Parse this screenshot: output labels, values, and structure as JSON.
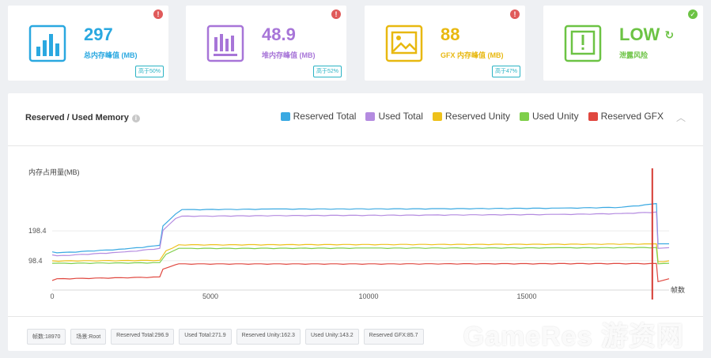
{
  "cards": [
    {
      "value": "297",
      "label": "总内存峰值 (MB)",
      "badge": "高于50%",
      "color": "#2aa8e0",
      "status": "!",
      "status_color": "#e05a5a"
    },
    {
      "value": "48.9",
      "label": "堆内存峰值 (MB)",
      "badge": "高于52%",
      "color": "#a775d8",
      "status": "!",
      "status_color": "#e05a5a"
    },
    {
      "value": "88",
      "label": "GFX 内存峰值 (MB)",
      "badge": "高于47%",
      "color": "#e8b810",
      "status": "!",
      "status_color": "#e05a5a"
    },
    {
      "value": "LOW",
      "label": "泄露风险",
      "badge": "",
      "color": "#6cc344",
      "status": "✓",
      "status_color": "#6cc344"
    }
  ],
  "panel": {
    "title": "Reserved / Used Memory",
    "collapse_icon": "︿",
    "legend": [
      {
        "name": "Reserved Total",
        "color": "#3aa9e2"
      },
      {
        "name": "Used Total",
        "color": "#b48be0"
      },
      {
        "name": "Reserved Unity",
        "color": "#eec11a"
      },
      {
        "name": "Used Unity",
        "color": "#7fcf4a"
      },
      {
        "name": "Reserved GFX",
        "color": "#e0473f"
      }
    ]
  },
  "chart_data": {
    "type": "line",
    "ylabel": "内存占用量(MB)",
    "xlabel": "帧数",
    "xlim": [
      0,
      19500
    ],
    "ylim": [
      0,
      350
    ],
    "xticks": [
      0,
      5000,
      10000,
      15000
    ],
    "yticks": [
      98.4,
      198.4
    ],
    "marker_x": 18970,
    "marker_color": "#d63a32",
    "series": [
      {
        "name": "Reserved Total",
        "color": "#3aa9e2",
        "x": [
          0,
          150,
          2300,
          3400,
          3500,
          3900,
          4100,
          7000,
          12000,
          16000,
          18000,
          19100,
          19150,
          19500
        ],
        "y": [
          128,
          125,
          138,
          150,
          215,
          255,
          270,
          272,
          273,
          275,
          278,
          290,
          155,
          155
        ]
      },
      {
        "name": "Used Total",
        "color": "#b48be0",
        "x": [
          0,
          150,
          2300,
          3400,
          3500,
          3900,
          4100,
          7000,
          12000,
          16000,
          18000,
          19100,
          19150,
          19500
        ],
        "y": [
          118,
          115,
          128,
          140,
          200,
          240,
          248,
          250,
          252,
          254,
          257,
          262,
          140,
          142
        ]
      },
      {
        "name": "Reserved Unity",
        "color": "#eec11a",
        "x": [
          0,
          3400,
          3600,
          4000,
          10000,
          16000,
          19100,
          19150,
          19500
        ],
        "y": [
          98,
          100,
          132,
          152,
          153,
          154,
          155,
          95,
          98
        ]
      },
      {
        "name": "Used Unity",
        "color": "#7fcf4a",
        "x": [
          0,
          3400,
          3600,
          4000,
          10000,
          16000,
          19100,
          19150,
          19500
        ],
        "y": [
          90,
          92,
          120,
          140,
          141,
          142,
          143,
          88,
          90
        ]
      },
      {
        "name": "Reserved GFX",
        "color": "#e0473f",
        "x": [
          0,
          150,
          3400,
          3500,
          3900,
          4000,
          10000,
          16000,
          19100,
          19150,
          19500
        ],
        "y": [
          32,
          38,
          44,
          70,
          85,
          88,
          88,
          89,
          89,
          28,
          38
        ]
      }
    ]
  },
  "stats": [
    "帧数:18970",
    "场景:Root",
    "Reserved Total:296.9",
    "Used Total:271.9",
    "Reserved Unity:162.3",
    "Used Unity:143.2",
    "Reserved GFX:85.7"
  ],
  "watermark": "GameRes 游资网"
}
